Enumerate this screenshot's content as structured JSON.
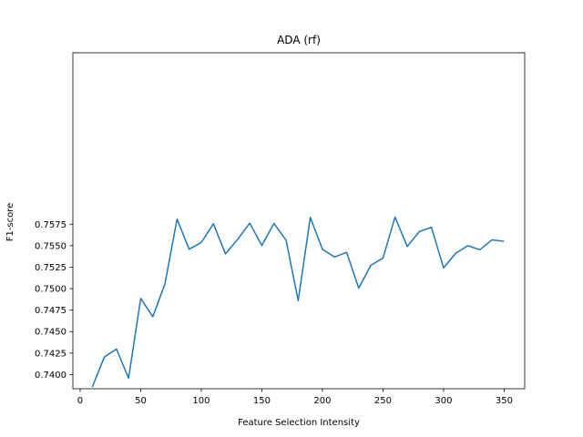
{
  "chart_data": {
    "type": "line",
    "title": "ADA (rf)",
    "xlabel": "Feature Selection Intensity",
    "ylabel": "F1-score",
    "xlim": [
      -6,
      367
    ],
    "ylim": [
      0.73835,
      0.77745
    ],
    "xticks": [
      0,
      50,
      100,
      150,
      200,
      250,
      300,
      350
    ],
    "yticks": [
      0.74,
      0.7425,
      0.745,
      0.7475,
      0.75,
      0.7525,
      0.755,
      0.7575
    ],
    "ytick_labels": [
      "0.7400",
      "0.7425",
      "0.7450",
      "0.7475",
      "0.7500",
      "0.7525",
      "0.7550",
      "0.7575"
    ],
    "grid": false,
    "series": [
      {
        "color": "#1f77b4",
        "x": [
          10,
          20,
          30,
          40,
          50,
          60,
          70,
          80,
          90,
          100,
          110,
          120,
          130,
          140,
          150,
          160,
          170,
          180,
          190,
          200,
          210,
          220,
          230,
          240,
          250,
          260,
          270,
          280,
          290,
          300,
          310,
          320,
          330,
          340,
          350
        ],
        "y": [
          0.73855,
          0.74205,
          0.74297,
          0.73957,
          0.74886,
          0.74674,
          0.75055,
          0.75809,
          0.75458,
          0.75538,
          0.75755,
          0.75405,
          0.75573,
          0.75762,
          0.75503,
          0.75759,
          0.75564,
          0.7486,
          0.75829,
          0.75459,
          0.75368,
          0.75423,
          0.75006,
          0.75272,
          0.75356,
          0.75834,
          0.7549,
          0.75664,
          0.75714,
          0.75242,
          0.75411,
          0.755,
          0.75453,
          0.75568,
          0.75551
        ]
      }
    ]
  }
}
